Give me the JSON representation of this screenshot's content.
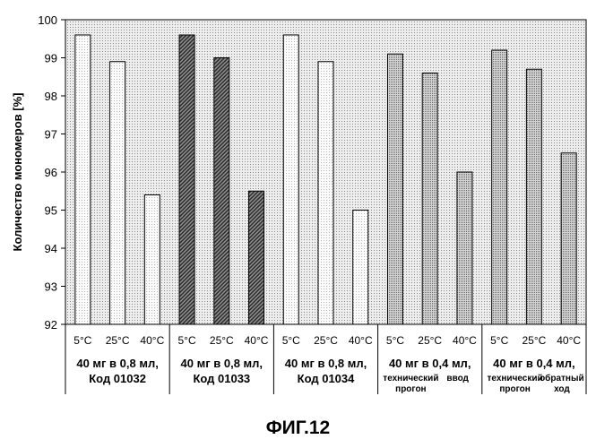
{
  "chart_data": {
    "type": "bar",
    "title": "",
    "ylabel": "Количество мономеров [%]",
    "xlabel": "",
    "ylim": [
      92,
      100
    ],
    "yticks": [
      "92",
      "93",
      "94",
      "95",
      "96",
      "97",
      "98",
      "99",
      "100"
    ],
    "grid": false,
    "categories": [
      "5°C",
      "25°C",
      "40°C",
      "5°C",
      "25°C",
      "40°C",
      "5°C",
      "25°C",
      "40°C",
      "5°C",
      "25°C",
      "40°C",
      "5°C",
      "25°C",
      "40°C"
    ],
    "groups": [
      {
        "lines": [
          "40 мг в 0,8 мл,",
          "Код 01032"
        ],
        "values": [
          99.6,
          98.9,
          95.4
        ],
        "fill": "light"
      },
      {
        "lines": [
          "40 мг в 0,8 мл,",
          "Код 01033"
        ],
        "values": [
          99.6,
          99.0,
          95.5
        ],
        "fill": "dark"
      },
      {
        "lines": [
          "40 мг в 0,8 мл,",
          "Код 01034"
        ],
        "values": [
          99.6,
          98.9,
          95.0
        ],
        "fill": "light"
      },
      {
        "lines": [
          "40 мг в 0,4 мл,"
        ],
        "sublabels": [
          [
            "технический",
            "прогон"
          ],
          [
            "ввод"
          ]
        ],
        "values": [
          99.1,
          98.6,
          96.0
        ],
        "fill": "medium"
      },
      {
        "lines": [
          "40 мг в 0,4 мл,"
        ],
        "sublabels": [
          [
            "технический",
            "прогон"
          ],
          [
            "обратный",
            "ход"
          ]
        ],
        "values": [
          99.2,
          98.7,
          96.5
        ],
        "fill": "medium"
      }
    ]
  },
  "caption": "ФИГ.12"
}
